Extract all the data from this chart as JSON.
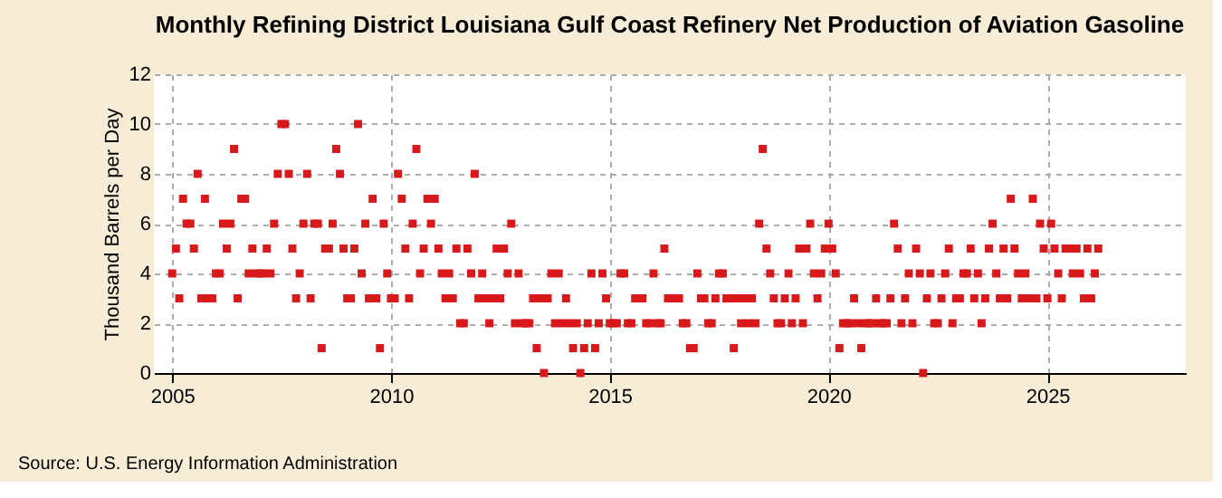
{
  "chart_data": {
    "type": "scatter",
    "title": "Monthly Refining District Louisiana Gulf Coast Refinery Net Production of Aviation Gasoline",
    "ylabel": "Thousand Barrels per Day",
    "annotations": [
      "Source: U.S. Energy Information Administration"
    ],
    "marker": "square",
    "grid": true,
    "xlim": [
      "2004-08",
      "2028-03"
    ],
    "xticks": [
      "2005",
      "2010",
      "2015",
      "2020",
      "2025"
    ],
    "ylim": [
      0,
      12
    ],
    "yticks": [
      0,
      2,
      4,
      6,
      8,
      10,
      12
    ],
    "x": [
      "2005-01",
      "2005-02",
      "2005-03",
      "2005-04",
      "2005-05",
      "2005-06",
      "2005-07",
      "2005-08",
      "2005-09",
      "2005-10",
      "2005-11",
      "2005-12",
      "2006-01",
      "2006-02",
      "2006-03",
      "2006-04",
      "2006-05",
      "2006-06",
      "2006-07",
      "2006-08",
      "2006-09",
      "2006-10",
      "2006-11",
      "2006-12",
      "2007-01",
      "2007-02",
      "2007-03",
      "2007-04",
      "2007-05",
      "2007-06",
      "2007-07",
      "2007-08",
      "2007-09",
      "2007-10",
      "2007-11",
      "2007-12",
      "2008-01",
      "2008-02",
      "2008-03",
      "2008-04",
      "2008-05",
      "2008-06",
      "2008-07",
      "2008-08",
      "2008-09",
      "2008-10",
      "2008-11",
      "2008-12",
      "2009-01",
      "2009-02",
      "2009-03",
      "2009-04",
      "2009-05",
      "2009-06",
      "2009-07",
      "2009-08",
      "2009-09",
      "2009-10",
      "2009-11",
      "2009-12",
      "2010-01",
      "2010-02",
      "2010-03",
      "2010-04",
      "2010-05",
      "2010-06",
      "2010-07",
      "2010-08",
      "2010-09",
      "2010-10",
      "2010-11",
      "2010-12",
      "2011-01",
      "2011-02",
      "2011-03",
      "2011-04",
      "2011-05",
      "2011-06",
      "2011-07",
      "2011-08",
      "2011-09",
      "2011-10",
      "2011-11",
      "2011-12",
      "2012-01",
      "2012-02",
      "2012-03",
      "2012-04",
      "2012-05",
      "2012-06",
      "2012-07",
      "2012-08",
      "2012-09",
      "2012-10",
      "2012-11",
      "2012-12",
      "2013-01",
      "2013-02",
      "2013-03",
      "2013-04",
      "2013-05",
      "2013-06",
      "2013-07",
      "2013-08",
      "2013-09",
      "2013-10",
      "2013-11",
      "2013-12",
      "2014-01",
      "2014-02",
      "2014-03",
      "2014-04",
      "2014-05",
      "2014-06",
      "2014-07",
      "2014-08",
      "2014-09",
      "2014-10",
      "2014-11",
      "2014-12",
      "2015-01",
      "2015-02",
      "2015-03",
      "2015-04",
      "2015-05",
      "2015-06",
      "2015-07",
      "2015-08",
      "2015-09",
      "2015-10",
      "2015-11",
      "2015-12",
      "2016-01",
      "2016-02",
      "2016-03",
      "2016-04",
      "2016-05",
      "2016-06",
      "2016-07",
      "2016-08",
      "2016-09",
      "2016-10",
      "2016-11",
      "2016-12",
      "2017-01",
      "2017-02",
      "2017-03",
      "2017-04",
      "2017-05",
      "2017-06",
      "2017-07",
      "2017-08",
      "2017-09",
      "2017-10",
      "2017-11",
      "2017-12",
      "2018-01",
      "2018-02",
      "2018-03",
      "2018-04",
      "2018-05",
      "2018-06",
      "2018-07",
      "2018-08",
      "2018-09",
      "2018-10",
      "2018-11",
      "2018-12",
      "2019-01",
      "2019-02",
      "2019-03",
      "2019-04",
      "2019-05",
      "2019-06",
      "2019-07",
      "2019-08",
      "2019-09",
      "2019-10",
      "2019-11",
      "2019-12",
      "2020-01",
      "2020-02",
      "2020-03",
      "2020-04",
      "2020-05",
      "2020-06",
      "2020-07",
      "2020-08",
      "2020-09",
      "2020-10",
      "2020-11",
      "2020-12",
      "2021-01",
      "2021-02",
      "2021-03",
      "2021-04",
      "2021-05",
      "2021-06",
      "2021-07",
      "2021-08",
      "2021-09",
      "2021-10",
      "2021-11",
      "2021-12",
      "2022-01",
      "2022-02",
      "2022-03",
      "2022-04",
      "2022-05",
      "2022-06",
      "2022-07",
      "2022-08",
      "2022-09",
      "2022-10",
      "2022-11",
      "2022-12",
      "2023-01",
      "2023-02",
      "2023-03",
      "2023-04",
      "2023-05",
      "2023-06",
      "2023-07",
      "2023-08",
      "2023-09",
      "2023-10",
      "2023-11",
      "2023-12",
      "2024-01",
      "2024-02",
      "2024-03",
      "2024-04",
      "2024-05",
      "2024-06",
      "2024-07",
      "2024-08",
      "2024-09",
      "2024-10",
      "2024-11",
      "2024-12",
      "2025-01",
      "2025-02",
      "2025-03",
      "2025-04",
      "2025-05",
      "2025-06",
      "2025-07",
      "2025-08",
      "2025-09",
      "2025-10",
      "2025-11",
      "2025-12",
      "2026-01",
      "2026-02",
      "2026-03"
    ],
    "series": [
      {
        "color": "#d7191c",
        "values": [
          4,
          5,
          3,
          7,
          6,
          6,
          5,
          8,
          3,
          7,
          3,
          3,
          4,
          4,
          6,
          5,
          6,
          9,
          3,
          7,
          7,
          4,
          5,
          4,
          4,
          4,
          5,
          4,
          6,
          8,
          10,
          10,
          8,
          5,
          3,
          4,
          6,
          8,
          3,
          6,
          6,
          1,
          5,
          5,
          6,
          9,
          8,
          5,
          3,
          3,
          5,
          10,
          4,
          6,
          3,
          7,
          3,
          1,
          6,
          4,
          3,
          3,
          8,
          7,
          5,
          3,
          6,
          9,
          4,
          5,
          7,
          6,
          7,
          5,
          4,
          3,
          4,
          3,
          5,
          2,
          2,
          5,
          4,
          8,
          3,
          4,
          3,
          2,
          3,
          5,
          3,
          5,
          4,
          6,
          2,
          4,
          2,
          2,
          2,
          3,
          1,
          3,
          0,
          3,
          4,
          2,
          4,
          2,
          3,
          2,
          1,
          2,
          0,
          1,
          2,
          4,
          1,
          2,
          4,
          3,
          2,
          2,
          2,
          4,
          4,
          2,
          2,
          3,
          3,
          3,
          2,
          2,
          4,
          2,
          2,
          5,
          3,
          3,
          3,
          3,
          2,
          2,
          1,
          1,
          4,
          3,
          3,
          2,
          2,
          3,
          4,
          4,
          3,
          3,
          1,
          3,
          2,
          3,
          2,
          3,
          2,
          6,
          9,
          5,
          4,
          3,
          2,
          2,
          3,
          4,
          2,
          3,
          5,
          2,
          5,
          6,
          4,
          3,
          4,
          5,
          6,
          5,
          4,
          1,
          2,
          2,
          2,
          3,
          2,
          1,
          2,
          2,
          2,
          3,
          2,
          2,
          2,
          3,
          6,
          5,
          2,
          3,
          4,
          2,
          5,
          4,
          0,
          3,
          4,
          2,
          2,
          3,
          4,
          5,
          2,
          3,
          3,
          4,
          4,
          5,
          3,
          4,
          2,
          3,
          5,
          6,
          4,
          3,
          5,
          3,
          7,
          5,
          4,
          3,
          4,
          3,
          7,
          3,
          6,
          5,
          3,
          6,
          5,
          4,
          3,
          5,
          5,
          4,
          5,
          4,
          3,
          5,
          3,
          4,
          5
        ]
      }
    ]
  }
}
